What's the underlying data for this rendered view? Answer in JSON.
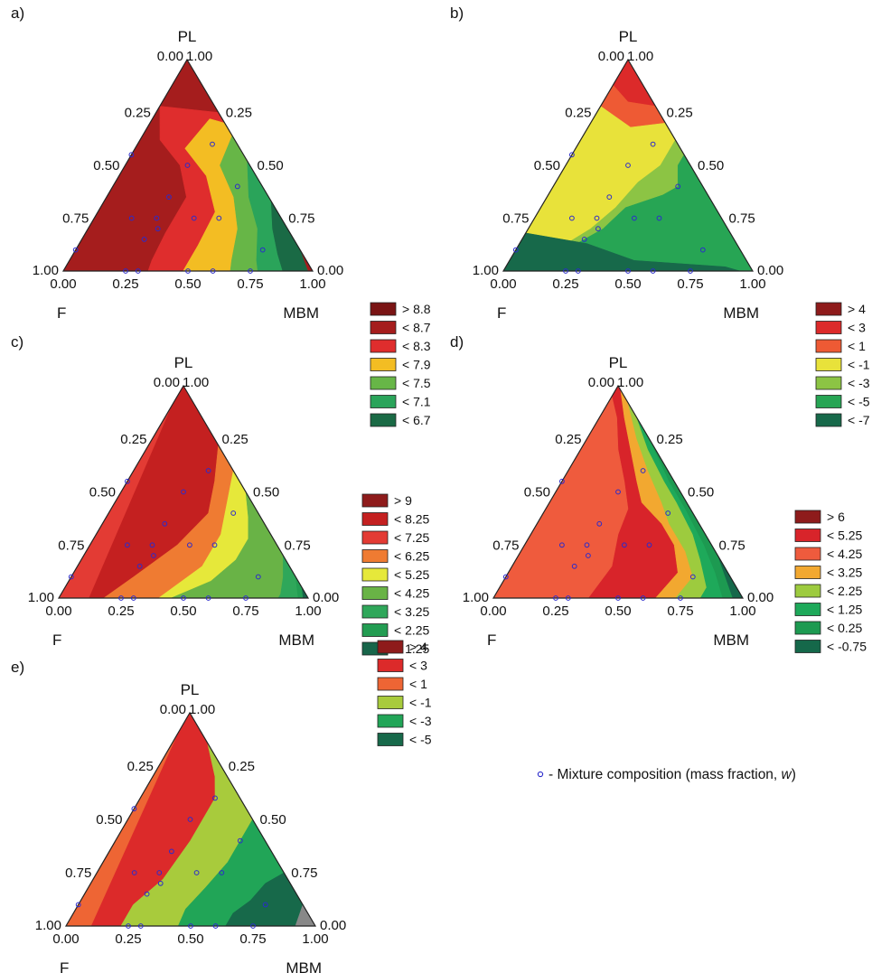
{
  "chart_data": [
    {
      "panel": "a)",
      "type": "ternary-contour",
      "vertices": {
        "top": "PL",
        "left": "F",
        "right": "MBM"
      },
      "ticks": [
        "0.00",
        "0.25",
        "0.50",
        "0.75",
        "1.00"
      ],
      "legend": [
        {
          "label": "> 8.8",
          "color": "#7a1414"
        },
        {
          "label": "< 8.7",
          "color": "#a51d1d"
        },
        {
          "label": "< 8.3",
          "color": "#df2d2d"
        },
        {
          "label": "< 7.9",
          "color": "#f3bd23"
        },
        {
          "label": "< 7.5",
          "color": "#67b647"
        },
        {
          "label": "< 7.1",
          "color": "#2aa45a"
        },
        {
          "label": "< 6.7",
          "color": "#1a6a45"
        }
      ],
      "points": [
        [
          0.5,
          0.25,
          0.25
        ],
        [
          0.4,
          0.1,
          0.5
        ],
        [
          0.25,
          0.25,
          0.5
        ],
        [
          0.25,
          0.5,
          0.25
        ],
        [
          0.1,
          0.15,
          0.75
        ],
        [
          0.35,
          0.4,
          0.25
        ],
        [
          0.25,
          0.35,
          0.4
        ],
        [
          0.25,
          0.6,
          0.15
        ],
        [
          0.2,
          0.52,
          0.28
        ],
        [
          0.15,
          0.6,
          0.25
        ],
        [
          0.6,
          0.1,
          0.3
        ],
        [
          0.55,
          0.45,
          0
        ],
        [
          0.1,
          0.9,
          0
        ],
        [
          0,
          0.5,
          0.5
        ],
        [
          0,
          0.25,
          0.75
        ],
        [
          0,
          0.75,
          0.25
        ],
        [
          0,
          0.4,
          0.6
        ],
        [
          0,
          0.7,
          0.3
        ]
      ]
    },
    {
      "panel": "b)",
      "type": "ternary-contour",
      "vertices": {
        "top": "PL",
        "left": "F",
        "right": "MBM"
      },
      "ticks": [
        "0.00",
        "0.25",
        "0.50",
        "0.75",
        "1.00"
      ],
      "legend": [
        {
          "label": "> 4",
          "color": "#8e1b1b"
        },
        {
          "label": "< 3",
          "color": "#dc2a2a"
        },
        {
          "label": "< 1",
          "color": "#ee5a34"
        },
        {
          "label": "< -1",
          "color": "#e8e23a"
        },
        {
          "label": "< -3",
          "color": "#8cc444"
        },
        {
          "label": "< -5",
          "color": "#27a554"
        },
        {
          "label": "< -7",
          "color": "#17694a"
        }
      ],
      "points": [
        [
          0.5,
          0.25,
          0.25
        ],
        [
          0.4,
          0.1,
          0.5
        ],
        [
          0.25,
          0.25,
          0.5
        ],
        [
          0.25,
          0.5,
          0.25
        ],
        [
          0.1,
          0.15,
          0.75
        ],
        [
          0.35,
          0.4,
          0.25
        ],
        [
          0.25,
          0.35,
          0.4
        ],
        [
          0.25,
          0.6,
          0.15
        ],
        [
          0.2,
          0.52,
          0.28
        ],
        [
          0.15,
          0.6,
          0.25
        ],
        [
          0.6,
          0.1,
          0.3
        ],
        [
          0.55,
          0.45,
          0
        ],
        [
          0.1,
          0.9,
          0
        ],
        [
          0,
          0.5,
          0.5
        ],
        [
          0,
          0.25,
          0.75
        ],
        [
          0,
          0.75,
          0.25
        ],
        [
          0,
          0.4,
          0.6
        ],
        [
          0,
          0.7,
          0.3
        ]
      ]
    },
    {
      "panel": "c)",
      "type": "ternary-contour",
      "vertices": {
        "top": "PL",
        "left": "F",
        "right": "MBM"
      },
      "ticks": [
        "0.00",
        "0.25",
        "0.50",
        "0.75",
        "1.00"
      ],
      "legend": [
        {
          "label": "> 9",
          "color": "#8e1b1b"
        },
        {
          "label": "< 8.25",
          "color": "#c42020"
        },
        {
          "label": "< 7.25",
          "color": "#e33b34"
        },
        {
          "label": "< 6.25",
          "color": "#ef7b32"
        },
        {
          "label": "< 5.25",
          "color": "#e6e83a"
        },
        {
          "label": "< 4.25",
          "color": "#69b346"
        },
        {
          "label": "< 3.25",
          "color": "#2fa75a"
        },
        {
          "label": "< 2.25",
          "color": "#239d52"
        },
        {
          "label": "< 1.25",
          "color": "#17654a"
        }
      ],
      "points": [
        [
          0.5,
          0.25,
          0.25
        ],
        [
          0.4,
          0.1,
          0.5
        ],
        [
          0.25,
          0.25,
          0.5
        ],
        [
          0.25,
          0.5,
          0.25
        ],
        [
          0.1,
          0.15,
          0.75
        ],
        [
          0.35,
          0.4,
          0.25
        ],
        [
          0.25,
          0.35,
          0.4
        ],
        [
          0.25,
          0.6,
          0.15
        ],
        [
          0.2,
          0.52,
          0.28
        ],
        [
          0.15,
          0.6,
          0.25
        ],
        [
          0.6,
          0.1,
          0.3
        ],
        [
          0.55,
          0.45,
          0
        ],
        [
          0.1,
          0.9,
          0
        ],
        [
          0,
          0.5,
          0.5
        ],
        [
          0,
          0.25,
          0.75
        ],
        [
          0,
          0.75,
          0.25
        ],
        [
          0,
          0.4,
          0.6
        ],
        [
          0,
          0.7,
          0.3
        ]
      ]
    },
    {
      "panel": "d)",
      "type": "ternary-contour",
      "vertices": {
        "top": "PL",
        "left": "F",
        "right": "MBM"
      },
      "ticks": [
        "0.00",
        "0.25",
        "0.50",
        "0.75",
        "1.00"
      ],
      "legend": [
        {
          "label": "> 6",
          "color": "#8e1b1b"
        },
        {
          "label": "< 5.25",
          "color": "#d8242a"
        },
        {
          "label": "< 4.25",
          "color": "#ef5b3d"
        },
        {
          "label": "< 3.25",
          "color": "#f2a830"
        },
        {
          "label": "< 2.25",
          "color": "#9dcb3e"
        },
        {
          "label": "< 1.25",
          "color": "#1ea95a"
        },
        {
          "label": "< 0.25",
          "color": "#1d9a51"
        },
        {
          "label": "< -0.75",
          "color": "#15684a"
        }
      ],
      "points": [
        [
          0.5,
          0.25,
          0.25
        ],
        [
          0.4,
          0.1,
          0.5
        ],
        [
          0.25,
          0.25,
          0.5
        ],
        [
          0.25,
          0.5,
          0.25
        ],
        [
          0.1,
          0.15,
          0.75
        ],
        [
          0.35,
          0.4,
          0.25
        ],
        [
          0.25,
          0.35,
          0.4
        ],
        [
          0.25,
          0.6,
          0.15
        ],
        [
          0.2,
          0.52,
          0.28
        ],
        [
          0.15,
          0.6,
          0.25
        ],
        [
          0.6,
          0.1,
          0.3
        ],
        [
          0.55,
          0.45,
          0
        ],
        [
          0.1,
          0.9,
          0
        ],
        [
          0,
          0.5,
          0.5
        ],
        [
          0,
          0.25,
          0.75
        ],
        [
          0,
          0.75,
          0.25
        ],
        [
          0,
          0.4,
          0.6
        ],
        [
          0,
          0.7,
          0.3
        ]
      ]
    },
    {
      "panel": "e)",
      "type": "ternary-contour",
      "vertices": {
        "top": "PL",
        "left": "F",
        "right": "MBM"
      },
      "ticks": [
        "0.00",
        "0.25",
        "0.50",
        "0.75",
        "1.00"
      ],
      "legend": [
        {
          "label": "> 4",
          "color": "#8e1b1b"
        },
        {
          "label": "< 3",
          "color": "#dc2a2a"
        },
        {
          "label": "< 1",
          "color": "#ee6534"
        },
        {
          "label": "< -1",
          "color": "#a8cb3c"
        },
        {
          "label": "< -3",
          "color": "#21a557"
        },
        {
          "label": "< -5",
          "color": "#17694a"
        }
      ],
      "points": [
        [
          0.5,
          0.25,
          0.25
        ],
        [
          0.4,
          0.1,
          0.5
        ],
        [
          0.25,
          0.25,
          0.5
        ],
        [
          0.25,
          0.5,
          0.25
        ],
        [
          0.1,
          0.15,
          0.75
        ],
        [
          0.35,
          0.4,
          0.25
        ],
        [
          0.25,
          0.35,
          0.4
        ],
        [
          0.25,
          0.6,
          0.15
        ],
        [
          0.2,
          0.52,
          0.28
        ],
        [
          0.15,
          0.6,
          0.25
        ],
        [
          0.6,
          0.1,
          0.3
        ],
        [
          0.55,
          0.45,
          0
        ],
        [
          0.1,
          0.9,
          0
        ],
        [
          0,
          0.5,
          0.5
        ],
        [
          0,
          0.25,
          0.75
        ],
        [
          0,
          0.75,
          0.25
        ],
        [
          0,
          0.4,
          0.6
        ],
        [
          0,
          0.7,
          0.3
        ]
      ]
    }
  ],
  "note": {
    "marker": "∘",
    "text": "- Mixture composition (mass fraction, ",
    "variable": "w",
    "close": ")"
  }
}
